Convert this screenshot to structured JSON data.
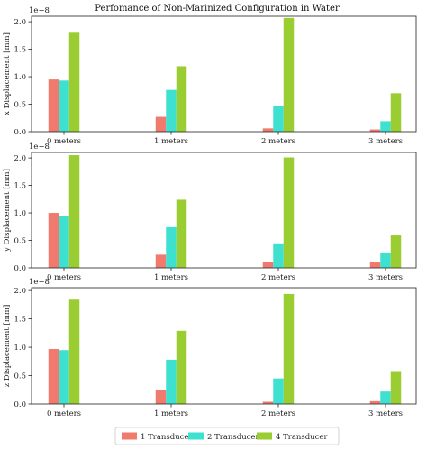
{
  "chart_data": {
    "type": "bar",
    "title": "Perfomance of Non-Marinized Configuration in Water",
    "categories": [
      "0 meters",
      "1 meters",
      "2 meters",
      "3 meters"
    ],
    "series_names": [
      "1 Transducer",
      "2 Transducer",
      "4 Transducer"
    ],
    "colors": [
      "#f07a6e",
      "#3ee0d0",
      "#9acd32"
    ],
    "legend_position": "bottom-center",
    "scale_note": "1e−8",
    "panels": [
      {
        "ylabel": "x Displacement [mm]",
        "ylim": [
          0,
          2.1
        ],
        "yticks": [
          "0.0",
          "0.5",
          "1.0",
          "1.5",
          "2.0"
        ],
        "series": [
          {
            "name": "1 Transducer",
            "values": [
              0.95,
              0.27,
              0.06,
              0.04
            ]
          },
          {
            "name": "2 Transducer",
            "values": [
              0.93,
              0.76,
              0.46,
              0.19
            ]
          },
          {
            "name": "4 Transducer",
            "values": [
              1.8,
              1.19,
              2.07,
              0.7
            ]
          }
        ]
      },
      {
        "ylabel": "y Displacement [mm]",
        "ylim": [
          0,
          2.1
        ],
        "yticks": [
          "0.0",
          "0.5",
          "1.0",
          "1.5",
          "2.0"
        ],
        "series": [
          {
            "name": "1 Transducer",
            "values": [
              1.0,
              0.24,
              0.1,
              0.11
            ]
          },
          {
            "name": "2 Transducer",
            "values": [
              0.94,
              0.74,
              0.43,
              0.28
            ]
          },
          {
            "name": "4 Transducer",
            "values": [
              2.05,
              1.24,
              2.01,
              0.59
            ]
          }
        ]
      },
      {
        "ylabel": "z Displacement [mm]",
        "ylim": [
          0,
          2.05
        ],
        "yticks": [
          "0.0",
          "0.5",
          "1.0",
          "1.5",
          "2.0"
        ],
        "series": [
          {
            "name": "1 Transducer",
            "values": [
              0.97,
              0.25,
              0.04,
              0.05
            ]
          },
          {
            "name": "2 Transducer",
            "values": [
              0.95,
              0.78,
              0.45,
              0.22
            ]
          },
          {
            "name": "4 Transducer",
            "values": [
              1.84,
              1.29,
              1.94,
              0.58
            ]
          }
        ]
      }
    ]
  }
}
